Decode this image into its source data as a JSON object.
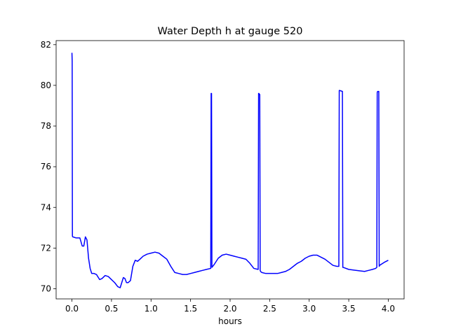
{
  "chart_data": {
    "type": "line",
    "title": "Water Depth h at gauge 520",
    "xlabel": "hours",
    "ylabel": "",
    "xlim": [
      -0.2,
      4.2
    ],
    "ylim": [
      69.5,
      82.2
    ],
    "xticks": [
      0.0,
      0.5,
      1.0,
      1.5,
      2.0,
      2.5,
      3.0,
      3.5,
      4.0
    ],
    "xtick_labels": [
      "0.0",
      "0.5",
      "1.0",
      "1.5",
      "2.0",
      "2.5",
      "3.0",
      "3.5",
      "4.0"
    ],
    "yticks": [
      70,
      72,
      74,
      76,
      78,
      80,
      82
    ],
    "ytick_labels": [
      "70",
      "72",
      "74",
      "76",
      "78",
      "80",
      "82"
    ],
    "grid": false,
    "colors": {
      "line": "#0000ff",
      "axes": "#000000",
      "background": "#ffffff"
    },
    "series": [
      {
        "x": [
          0.0,
          0.003,
          0.006,
          0.009,
          0.012,
          0.05,
          0.1,
          0.13,
          0.15,
          0.17,
          0.19,
          0.21,
          0.23,
          0.25,
          0.28,
          0.31,
          0.35,
          0.38,
          0.42,
          0.46,
          0.5,
          0.54,
          0.58,
          0.61,
          0.63,
          0.65,
          0.67,
          0.69,
          0.71,
          0.74,
          0.77,
          0.8,
          0.83,
          0.86,
          0.9,
          0.95,
          1.0,
          1.05,
          1.1,
          1.15,
          1.2,
          1.25,
          1.3,
          1.35,
          1.4,
          1.45,
          1.5,
          1.55,
          1.6,
          1.65,
          1.7,
          1.755,
          1.76,
          1.765,
          1.77,
          1.8,
          1.85,
          1.9,
          1.95,
          2.0,
          2.05,
          2.1,
          2.15,
          2.2,
          2.25,
          2.3,
          2.355,
          2.36,
          2.365,
          2.37,
          2.375,
          2.38,
          2.385,
          2.4,
          2.45,
          2.5,
          2.55,
          2.6,
          2.65,
          2.7,
          2.75,
          2.8,
          2.85,
          2.9,
          2.95,
          3.0,
          3.05,
          3.1,
          3.15,
          3.2,
          3.25,
          3.3,
          3.35,
          3.375,
          3.38,
          3.385,
          3.42,
          3.425,
          3.43,
          3.5,
          3.6,
          3.7,
          3.75,
          3.8,
          3.84,
          3.855,
          3.86,
          3.865,
          3.88,
          3.885,
          3.89,
          3.95,
          4.0
        ],
        "y": [
          81.6,
          81.2,
          72.6,
          72.55,
          72.55,
          72.5,
          72.5,
          72.1,
          72.1,
          72.55,
          72.4,
          71.5,
          71.0,
          70.75,
          70.75,
          70.7,
          70.45,
          70.5,
          70.65,
          70.6,
          70.45,
          70.3,
          70.1,
          70.05,
          70.3,
          70.55,
          70.5,
          70.3,
          70.3,
          70.4,
          71.1,
          71.4,
          71.35,
          71.45,
          71.6,
          71.7,
          71.75,
          71.8,
          71.75,
          71.6,
          71.45,
          71.1,
          70.8,
          70.75,
          70.7,
          70.7,
          70.75,
          70.8,
          70.85,
          70.9,
          70.95,
          71.0,
          79.6,
          79.6,
          71.05,
          71.2,
          71.5,
          71.65,
          71.7,
          71.65,
          71.6,
          71.55,
          71.5,
          71.45,
          71.25,
          71.0,
          70.95,
          79.6,
          79.6,
          79.55,
          79.55,
          70.9,
          70.85,
          70.8,
          70.75,
          70.75,
          70.75,
          70.75,
          70.8,
          70.85,
          70.95,
          71.1,
          71.25,
          71.35,
          71.5,
          71.6,
          71.65,
          71.65,
          71.55,
          71.45,
          71.3,
          71.15,
          71.1,
          71.1,
          79.75,
          79.75,
          79.7,
          71.05,
          71.05,
          70.95,
          70.9,
          70.85,
          70.9,
          70.95,
          71.0,
          71.05,
          79.65,
          79.7,
          79.7,
          71.1,
          71.15,
          71.3,
          71.4
        ]
      }
    ]
  }
}
